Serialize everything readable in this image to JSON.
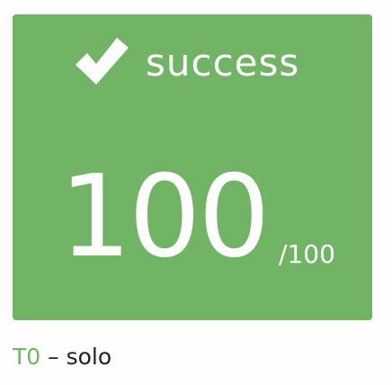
{
  "result": {
    "status_label": "success",
    "status_icon": "checkmark-icon",
    "score": "100",
    "score_max": "/100",
    "colors": {
      "success_bg": "#71b466",
      "text_on_bg": "#ffffff"
    }
  },
  "caption": {
    "test_id": "T0",
    "separator": "–",
    "mode": "solo"
  }
}
